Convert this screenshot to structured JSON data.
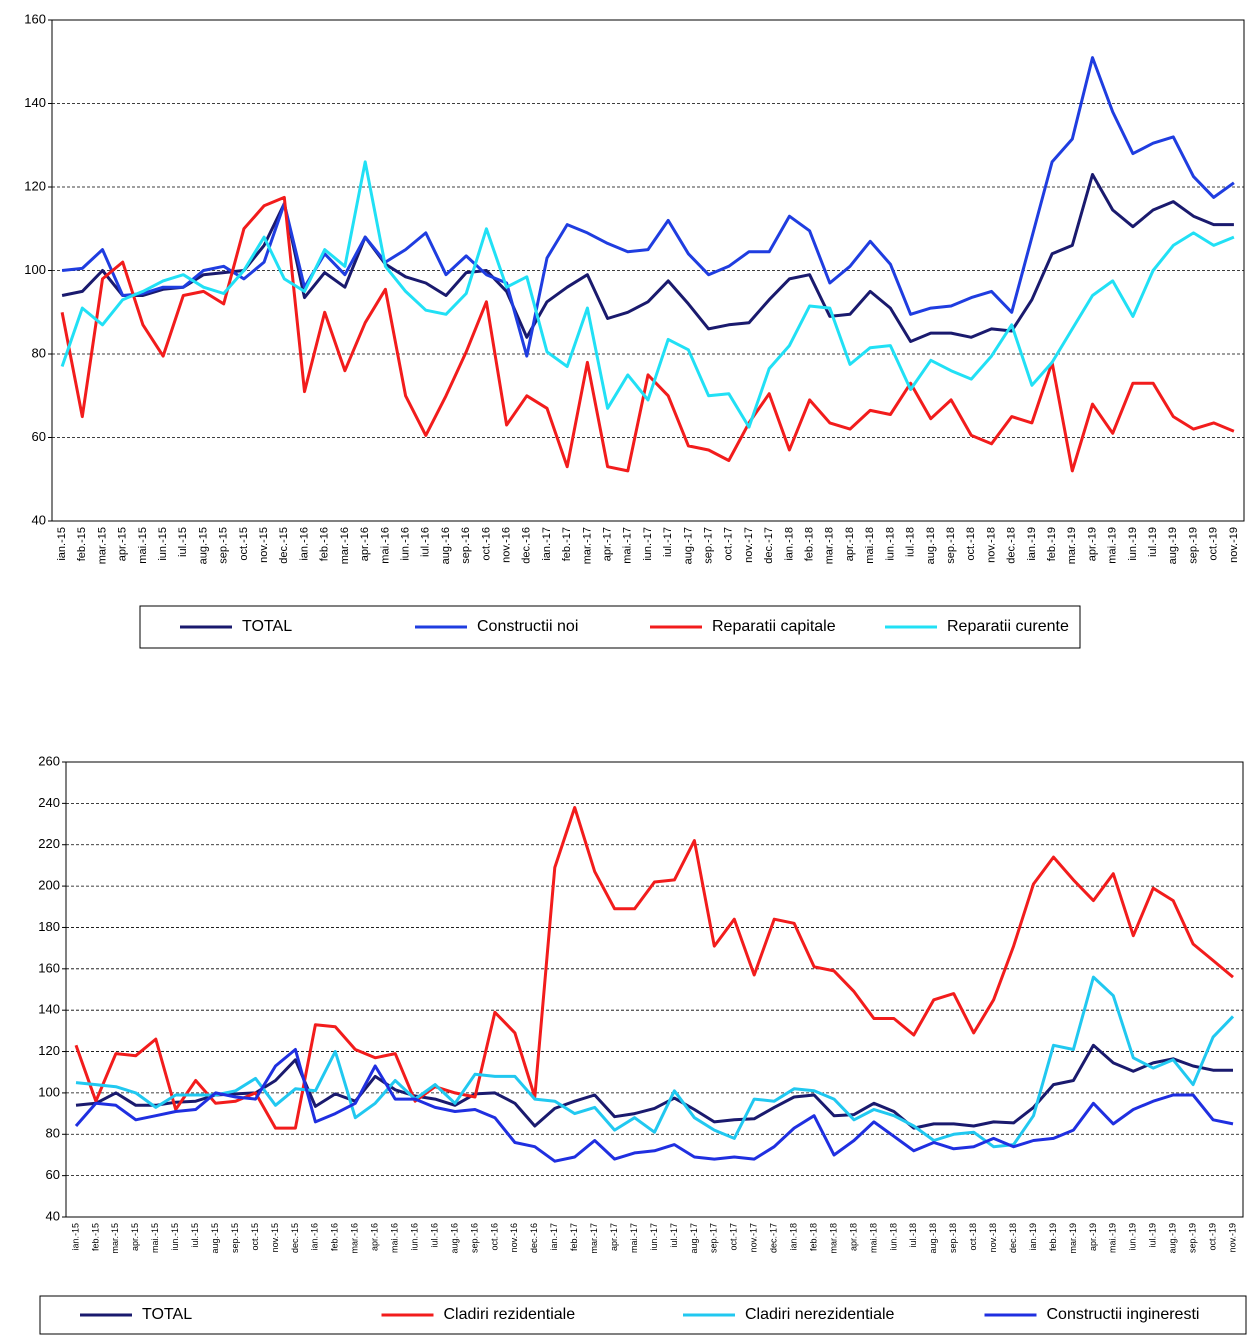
{
  "chart_data": [
    {
      "type": "line",
      "categories": [
        "ian.-15",
        "feb.-15",
        "mar.-15",
        "apr.-15",
        "mai.-15",
        "iun.-15",
        "iul.-15",
        "aug.-15",
        "sep.-15",
        "oct.-15",
        "nov.-15",
        "dec.-15",
        "ian.-16",
        "feb.-16",
        "mar.-16",
        "apr.-16",
        "mai.-16",
        "iun.-16",
        "iul.-16",
        "aug.-16",
        "sep.-16",
        "oct.-16",
        "nov.-16",
        "dec.-16",
        "ian.-17",
        "feb.-17",
        "mar.-17",
        "apr.-17",
        "mai.-17",
        "iun.-17",
        "iul.-17",
        "aug.-17",
        "sep.-17",
        "oct.-17",
        "nov.-17",
        "dec.-17",
        "ian.-18",
        "feb.-18",
        "mar.-18",
        "apr.-18",
        "mai.-18",
        "iun.-18",
        "iul.-18",
        "aug.-18",
        "sep.-18",
        "oct.-18",
        "nov.-18",
        "dec.-18",
        "ian.-19",
        "feb.-19",
        "mar.-19",
        "apr.-19",
        "mai.-19",
        "iun.-19",
        "iul.-19",
        "aug.-19",
        "sep.-19",
        "oct.-19",
        "nov.-19"
      ],
      "series": [
        {
          "name": "TOTAL",
          "color": "#1a1a6e",
          "values": [
            94,
            95,
            100,
            94,
            94,
            95.5,
            96,
            99,
            99.5,
            100,
            106,
            116,
            93.5,
            99.5,
            96,
            108,
            101.5,
            98.5,
            97,
            94,
            99.5,
            100,
            95,
            84,
            92.5,
            96,
            99,
            88.5,
            90,
            92.5,
            97.5,
            92,
            86,
            87,
            87.5,
            93,
            98,
            99,
            89,
            89.5,
            95,
            91,
            83,
            85,
            85,
            84,
            86,
            85.5,
            93,
            104,
            106,
            123,
            114.5,
            110.5,
            114.5,
            116.5,
            113,
            111,
            111
          ]
        },
        {
          "name": "Constructii noi",
          "color": "#1f3de0",
          "values": [
            100,
            100.5,
            105,
            94,
            94.5,
            96,
            96,
            100,
            101,
            98,
            102,
            116,
            96,
            104,
            99,
            108,
            102,
            105,
            109,
            99,
            103.5,
            99,
            97,
            79.5,
            103,
            111,
            109,
            106.5,
            104.5,
            105,
            112,
            104,
            99,
            101,
            104.5,
            104.5,
            113,
            109.5,
            97,
            101,
            107,
            101.5,
            89.5,
            91,
            91.5,
            93.5,
            95,
            90,
            108,
            126,
            131.5,
            151,
            138,
            128,
            130.5,
            132,
            122.5,
            117.5,
            121
          ]
        },
        {
          "name": "Reparatii capitale",
          "color": "#f21c1c",
          "values": [
            90,
            65,
            98,
            102,
            87,
            79.5,
            94,
            95,
            92,
            110,
            115.5,
            117.5,
            71,
            90,
            76,
            87.5,
            95.5,
            70,
            60.5,
            70,
            80.5,
            92.5,
            63,
            70,
            67,
            53,
            78,
            53,
            52,
            75,
            70,
            58,
            57,
            54.5,
            63.5,
            70.5,
            57,
            69,
            63.5,
            62,
            66.5,
            65.5,
            73,
            64.5,
            69,
            60.5,
            58.5,
            65,
            63.5,
            78,
            52,
            68,
            61,
            73,
            73,
            65,
            62,
            63.5,
            61.5
          ]
        },
        {
          "name": "Reparatii curente",
          "color": "#21e0f5",
          "values": [
            77,
            91,
            87,
            93,
            95,
            97.5,
            99,
            96,
            94.5,
            100,
            108,
            98,
            95,
            105,
            101,
            126,
            101,
            95,
            90.5,
            89.5,
            94.5,
            110,
            96,
            98.5,
            80.5,
            77,
            91,
            67,
            75,
            69,
            83.5,
            81,
            70,
            70.5,
            62.5,
            76.5,
            82,
            91.5,
            91,
            77.5,
            81.5,
            82,
            71.5,
            78.5,
            76,
            74,
            79.5,
            87,
            72.5,
            78,
            86,
            94,
            97.5,
            89,
            100,
            106,
            109,
            106,
            108
          ]
        }
      ],
      "ylim": [
        40,
        160
      ],
      "yticks": [
        40,
        60,
        80,
        100,
        120,
        140,
        160
      ],
      "grid": true
    },
    {
      "type": "line",
      "categories": [
        "ian.-15",
        "feb.-15",
        "mar.-15",
        "apr.-15",
        "mai.-15",
        "iun.-15",
        "iul.-15",
        "aug.-15",
        "sep.-15",
        "oct.-15",
        "nov.-15",
        "dec.-15",
        "ian.-16",
        "feb.-16",
        "mar.-16",
        "apr.-16",
        "mai.-16",
        "iun.-16",
        "iul.-16",
        "aug.-16",
        "sep.-16",
        "oct.-16",
        "nov.-16",
        "dec.-16",
        "ian.-17",
        "feb.-17",
        "mar.-17",
        "apr.-17",
        "mai.-17",
        "iun.-17",
        "iul.-17",
        "aug.-17",
        "sep.-17",
        "oct.-17",
        "nov.-17",
        "dec.-17",
        "ian.-18",
        "feb.-18",
        "mar.-18",
        "apr.-18",
        "mai.-18",
        "iun.-18",
        "iul.-18",
        "aug.-18",
        "sep.-18",
        "oct.-18",
        "nov.-18",
        "dec.-18",
        "ian.-19",
        "feb.-19",
        "mar.-19",
        "apr.-19",
        "mai.-19",
        "iun.-19",
        "iul.-19",
        "aug.-19",
        "sep.-19",
        "oct.-19",
        "nov.-19"
      ],
      "series": [
        {
          "name": "TOTAL",
          "color": "#1a1a6e",
          "values": [
            94,
            95,
            100,
            94,
            94,
            95.5,
            96,
            99,
            99.5,
            100,
            106,
            116,
            93.5,
            99.5,
            96,
            108,
            101.5,
            98.5,
            97,
            94,
            99.5,
            100,
            95,
            84,
            92.5,
            96,
            99,
            88.5,
            90,
            92.5,
            97.5,
            92,
            86,
            87,
            87.5,
            93,
            98,
            99,
            89,
            89.5,
            95,
            91,
            83,
            85,
            85,
            84,
            86,
            85.5,
            93,
            104,
            106,
            123,
            114.5,
            110.5,
            114.5,
            116.5,
            113,
            111,
            111
          ]
        },
        {
          "name": "Cladiri rezidentiale",
          "color": "#f21c1c",
          "values": [
            123,
            96,
            119,
            118,
            126,
            92,
            106,
            95,
            96,
            100,
            83,
            83,
            133,
            132,
            121,
            117,
            119,
            96,
            103,
            100,
            98,
            139,
            129,
            98,
            209,
            238,
            207,
            189,
            189,
            202,
            203,
            222,
            171,
            184,
            157,
            184,
            182,
            161,
            159,
            149,
            136,
            136,
            128,
            145,
            148,
            129,
            145,
            171,
            201,
            214,
            203,
            193,
            206,
            176,
            199,
            193,
            172,
            164,
            156
          ]
        },
        {
          "name": "Cladiri nerezidentiale",
          "color": "#21c8f0",
          "values": [
            105,
            104,
            103,
            100,
            93,
            99,
            99,
            99,
            101,
            107,
            94,
            102,
            101,
            120,
            88,
            95,
            106,
            97,
            104,
            95,
            109,
            108,
            108,
            97,
            96,
            90,
            93,
            82,
            88,
            81,
            101,
            88,
            82,
            78,
            97,
            96,
            102,
            101,
            97,
            87,
            92,
            89,
            84,
            77,
            80,
            81,
            74,
            75,
            89,
            123,
            121,
            156,
            147,
            117,
            112,
            116,
            104,
            127,
            137
          ]
        },
        {
          "name": "Constructii ingineresti",
          "color": "#1f2fe0",
          "values": [
            84,
            95,
            94,
            87,
            89,
            91,
            92,
            100,
            98,
            97,
            113,
            121,
            86,
            90,
            95,
            113,
            97,
            97,
            93,
            91,
            92,
            88,
            76,
            74,
            67,
            69,
            77,
            68,
            71,
            72,
            75,
            69,
            68,
            69,
            68,
            74,
            83,
            89,
            70,
            77,
            86,
            79,
            72,
            76,
            73,
            74,
            78,
            74,
            77,
            78,
            82,
            95,
            85,
            92,
            96,
            99,
            99,
            87,
            85
          ]
        }
      ],
      "ylim": [
        40,
        260
      ],
      "yticks": [
        40,
        60,
        80,
        100,
        120,
        140,
        160,
        180,
        200,
        220,
        240,
        260
      ],
      "grid": true
    }
  ]
}
